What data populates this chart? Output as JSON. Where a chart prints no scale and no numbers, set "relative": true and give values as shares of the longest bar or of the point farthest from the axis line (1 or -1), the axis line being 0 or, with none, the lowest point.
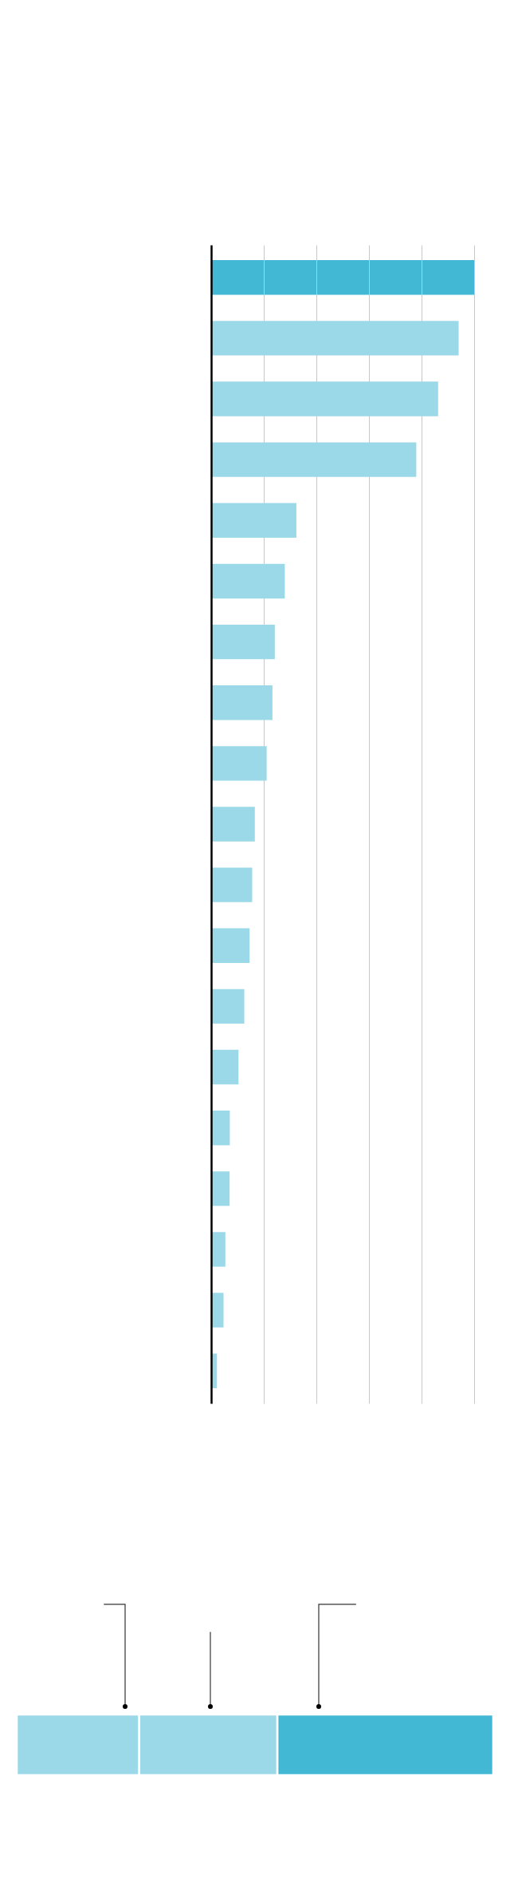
{
  "chart_data": [
    {
      "type": "bar",
      "orientation": "horizontal",
      "relative": true,
      "grid": "x",
      "categories": [
        null,
        null,
        null,
        null,
        null,
        null,
        null,
        null,
        null,
        null,
        null,
        null,
        null,
        null,
        null,
        null,
        null,
        null,
        null
      ],
      "values": [
        1,
        0.941,
        0.863,
        0.78,
        0.324,
        0.28,
        0.242,
        0.233,
        0.211,
        0.166,
        0.156,
        0.146,
        0.126,
        0.104,
        0.071,
        0.07,
        0.054,
        0.047,
        0.022
      ],
      "colors": [
        "#43b8d5",
        "#9cd9e8",
        "#9cd9e8",
        "#9cd9e8",
        "#9cd9e8",
        "#9cd9e8",
        "#9cd9e8",
        "#9cd9e8",
        "#9cd9e8",
        "#9cd9e8",
        "#9cd9e8",
        "#9cd9e8",
        "#9cd9e8",
        "#9cd9e8",
        "#9cd9e8",
        "#9cd9e8",
        "#9cd9e8",
        "#9cd9e8",
        "#9cd9e8"
      ]
    },
    {
      "type": "bar",
      "orientation": "horizontal",
      "stacked": true,
      "relative": true,
      "categories": [
        null
      ],
      "series": [
        {
          "color": "#9cd9e8",
          "values": [
            0.257
          ]
        },
        {
          "color": "#9cd9e8",
          "values": [
            0.29
          ]
        },
        {
          "color": "#43b8d5",
          "values": [
            0.453
          ]
        }
      ]
    }
  ]
}
